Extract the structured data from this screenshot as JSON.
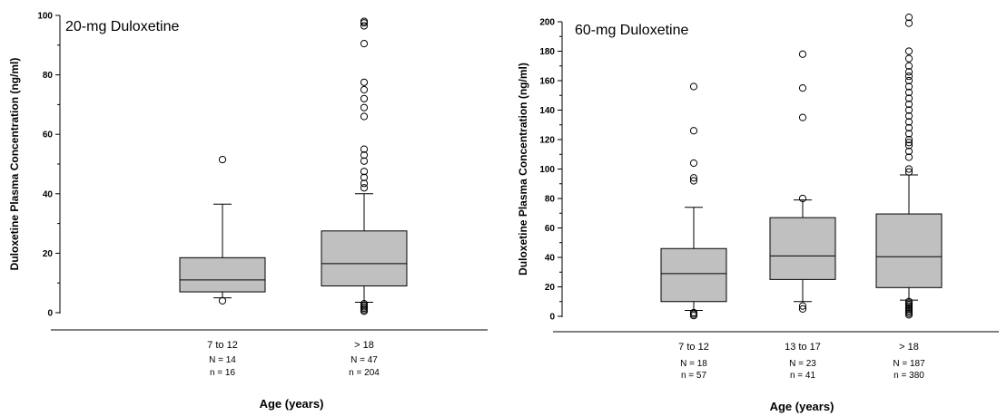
{
  "chart_data": [
    {
      "type": "box",
      "title": "20-mg Duloxetine",
      "ylabel": "Duloxetine Plasma Concentration (ng/ml)",
      "xlabel": "Age (years)",
      "ylim": [
        0,
        100
      ],
      "yticks": [
        0,
        20,
        40,
        60,
        80,
        100
      ],
      "grid": false,
      "categories": [
        {
          "label": "7 to 12",
          "N": "N = 14",
          "n": "n = 16",
          "whisker_low": 5,
          "q1": 7,
          "median": 11,
          "q3": 18.5,
          "whisker_high": 36.5,
          "outliers": [
            4,
            51.5
          ]
        },
        {
          "label": "> 18",
          "N": "N = 47",
          "n": "n = 204",
          "whisker_low": 3.5,
          "q1": 9,
          "median": 16.5,
          "q3": 27.5,
          "whisker_high": 40,
          "outliers": [
            0.5,
            1,
            1.5,
            2,
            2.5,
            3,
            42,
            43.5,
            45.5,
            47.5,
            51,
            53,
            55,
            66,
            69,
            72,
            75,
            77.5,
            90.5,
            96.5,
            97.5,
            98
          ]
        }
      ]
    },
    {
      "type": "box",
      "title": "60-mg Duloxetine",
      "ylabel": "Duloxetine Plasma Concentration (ng/ml)",
      "xlabel": "Age (years)",
      "ylim": [
        0,
        200
      ],
      "yticks": [
        0,
        20,
        40,
        60,
        80,
        100,
        120,
        140,
        160,
        180,
        200
      ],
      "grid": false,
      "categories": [
        {
          "label": "7 to 12",
          "N": "N = 18",
          "n": "n = 57",
          "whisker_low": 4,
          "q1": 10,
          "median": 29,
          "q3": 46,
          "whisker_high": 74,
          "outliers": [
            0.5,
            1.5,
            2.5,
            92,
            94,
            104,
            126,
            156
          ]
        },
        {
          "label": "13 to 17",
          "N": "N = 23",
          "n": "n = 41",
          "whisker_low": 10,
          "q1": 25,
          "median": 41,
          "q3": 67,
          "whisker_high": 79,
          "outliers": [
            5,
            7,
            80,
            135,
            155,
            178
          ]
        },
        {
          "label": "> 18",
          "N": "N = 187",
          "n": "n = 380",
          "whisker_low": 11,
          "q1": 19.5,
          "median": 40.5,
          "q3": 69.5,
          "whisker_high": 96,
          "outliers": [
            1,
            2,
            3,
            4,
            5,
            6,
            7,
            8,
            9,
            10,
            98,
            100,
            108,
            112,
            116,
            118,
            120,
            124,
            128,
            132,
            136,
            140,
            144,
            148,
            152,
            156,
            160,
            163,
            166,
            170,
            175,
            180,
            199,
            203
          ]
        }
      ]
    }
  ]
}
